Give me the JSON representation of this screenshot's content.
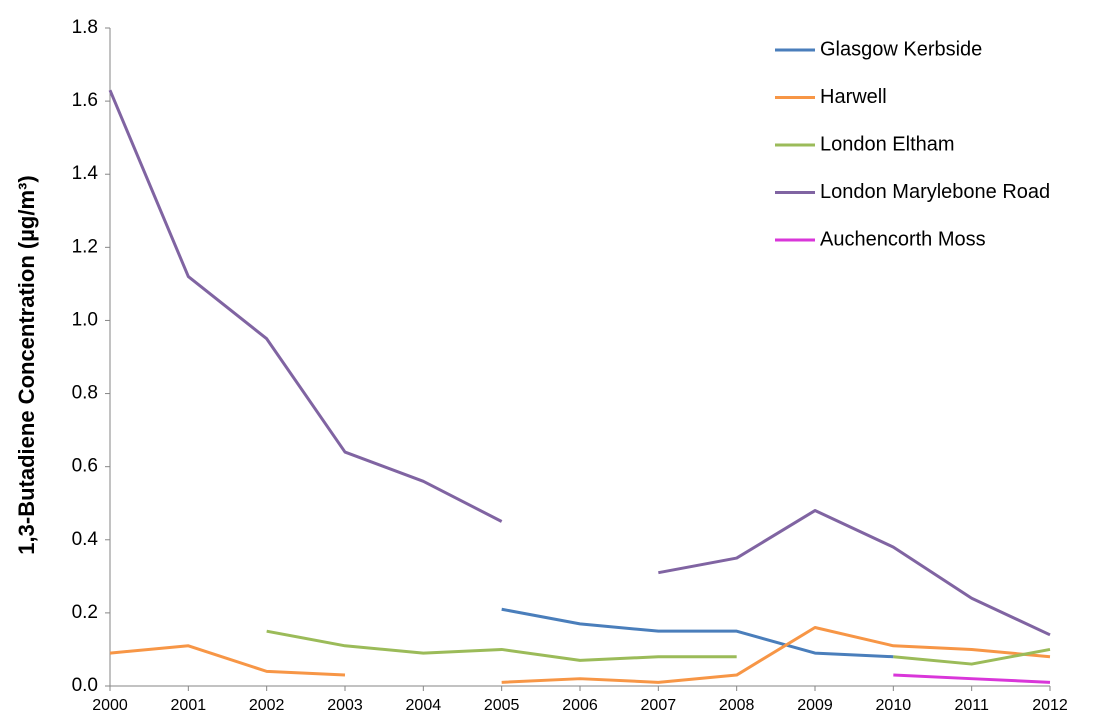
{
  "chart_data": {
    "type": "line",
    "y_label": "1,3-Butadiene Concentration (µg/m³)",
    "x": [
      2000,
      2001,
      2002,
      2003,
      2004,
      2005,
      2006,
      2007,
      2008,
      2009,
      2010,
      2011,
      2012
    ],
    "xlim": [
      2000,
      2012
    ],
    "xticks": [
      2000,
      2001,
      2002,
      2003,
      2004,
      2005,
      2006,
      2007,
      2008,
      2009,
      2010,
      2011,
      2012
    ],
    "ylim": [
      0,
      1.8
    ],
    "yticks": [
      {
        "value": 0,
        "label": "0.0"
      },
      0.2,
      0.4,
      0.6,
      0.8,
      {
        "value": 1,
        "label": "1.0"
      },
      1.2,
      1.4,
      1.6,
      1.8
    ],
    "grid": false,
    "legend": "top-right",
    "series": [
      {
        "name": "Glasgow Kerbside",
        "color": "#4a7ebb",
        "values": [
          null,
          null,
          null,
          null,
          null,
          0.21,
          0.17,
          0.15,
          0.15,
          0.09,
          0.08,
          null,
          null
        ]
      },
      {
        "name": "Harwell",
        "color": "#f79646",
        "values": [
          0.09,
          0.11,
          0.04,
          0.03,
          null,
          0.01,
          0.02,
          0.01,
          0.03,
          0.16,
          0.11,
          0.1,
          0.08
        ]
      },
      {
        "name": "London Eltham",
        "color": "#9bbb59",
        "values": [
          null,
          null,
          0.15,
          0.11,
          0.09,
          0.1,
          0.07,
          0.08,
          0.08,
          null,
          0.08,
          0.06,
          0.1
        ]
      },
      {
        "name": "London Marylebone Road",
        "color": "#8064a2",
        "values": [
          1.63,
          1.12,
          0.95,
          0.64,
          0.56,
          0.45,
          null,
          0.31,
          0.35,
          0.48,
          0.38,
          0.24,
          0.14
        ]
      },
      {
        "name": "Auchencorth Moss",
        "color": "#d936d9",
        "values": [
          null,
          null,
          null,
          null,
          null,
          null,
          null,
          null,
          null,
          null,
          0.03,
          0.02,
          0.01
        ]
      }
    ]
  }
}
